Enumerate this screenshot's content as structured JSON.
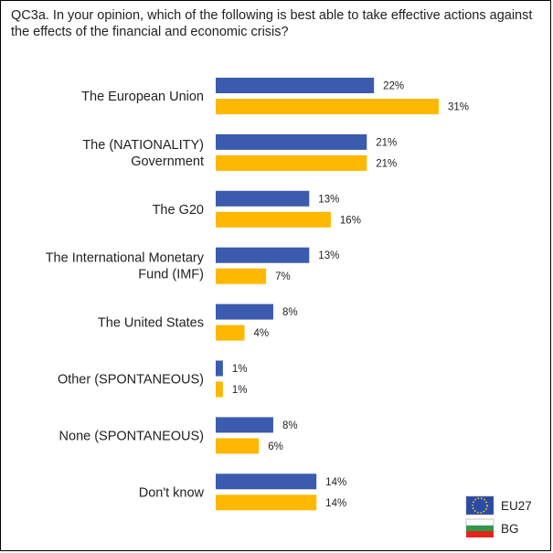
{
  "chart_data": {
    "type": "bar",
    "orientation": "horizontal",
    "title": "QC3a. In your opinion, which of the following is best able to take effective actions against the effects of the financial and economic crisis?",
    "categories": [
      [
        "The European Union"
      ],
      [
        "The (NATIONALITY)",
        "Government"
      ],
      [
        "The G20"
      ],
      [
        "The International Monetary",
        "Fund (IMF)"
      ],
      [
        "The United States"
      ],
      [
        "Other (SPONTANEOUS)"
      ],
      [
        "None (SPONTANEOUS)"
      ],
      [
        "Don't know"
      ]
    ],
    "series": [
      {
        "name": "EU27",
        "color": "#3A5BAE",
        "icon": "eu-flag-icon",
        "values": [
          22,
          21,
          13,
          13,
          8,
          1,
          8,
          14
        ]
      },
      {
        "name": "BG",
        "color": "#FFB800",
        "icon": "bulgaria-flag-icon",
        "values": [
          31,
          21,
          16,
          7,
          4,
          1,
          6,
          14
        ]
      }
    ],
    "value_suffix": "%",
    "xlabel": "",
    "ylabel": "",
    "xlim": [
      0,
      35
    ],
    "grid": false,
    "legend_position": "bottom-right"
  }
}
